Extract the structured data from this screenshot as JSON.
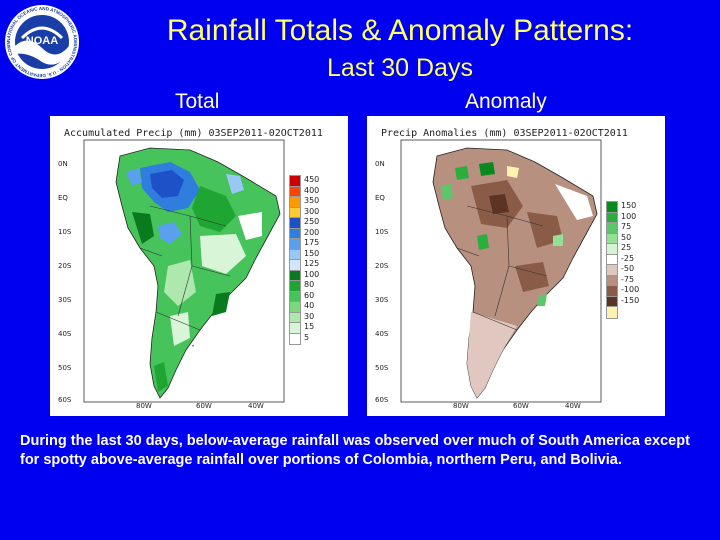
{
  "logo": {
    "icon": "noaa-logo",
    "center_text": "NOAA",
    "ring_text": "NATIONAL OCEANIC AND ATMOSPHERIC ADMINISTRATION · U.S. DEPARTMENT OF COMMERCE"
  },
  "slide": {
    "title": "Rainfall Totals & Anomaly Patterns:",
    "subtitle": "Last 30 Days"
  },
  "panels": {
    "total": {
      "label": "Total",
      "map_title": "Accumulated Precip (mm) 03SEP2011-02OCT2011",
      "lat_labels": [
        "0N",
        "EQ",
        "10S",
        "20S",
        "30S",
        "40S",
        "50S",
        "60S"
      ],
      "lon_labels": [
        "80W",
        "60W",
        "40W"
      ],
      "legend": [
        {
          "label": "450",
          "color": "#cc0000"
        },
        {
          "label": "400",
          "color": "#ff4400"
        },
        {
          "label": "350",
          "color": "#ff9900"
        },
        {
          "label": "300",
          "color": "#ffcc33"
        },
        {
          "label": "250",
          "color": "#1e50c8"
        },
        {
          "label": "200",
          "color": "#2f7ddc"
        },
        {
          "label": "175",
          "color": "#5aa0ee"
        },
        {
          "label": "150",
          "color": "#99c8f5"
        },
        {
          "label": "125",
          "color": "#cfe6fb"
        },
        {
          "label": "100",
          "color": "#0a7a1e"
        },
        {
          "label": "80",
          "color": "#1ea532"
        },
        {
          "label": "60",
          "color": "#46c35a"
        },
        {
          "label": "40",
          "color": "#7ad87e"
        },
        {
          "label": "30",
          "color": "#aee8ae"
        },
        {
          "label": "15",
          "color": "#d8f5d8"
        },
        {
          "label": "5",
          "color": "#ffffff"
        }
      ]
    },
    "anomaly": {
      "label": "Anomaly",
      "map_title": "Precip Anomalies (mm) 03SEP2011-02OCT2011",
      "lat_labels": [
        "0N",
        "EQ",
        "10S",
        "20S",
        "30S",
        "40S",
        "50S",
        "60S"
      ],
      "lon_labels": [
        "80W",
        "60W",
        "40W"
      ],
      "legend": [
        {
          "label": "150",
          "color": "#0a8a1e"
        },
        {
          "label": "100",
          "color": "#2aae3c"
        },
        {
          "label": "75",
          "color": "#5ac86a"
        },
        {
          "label": "50",
          "color": "#94e094"
        },
        {
          "label": "25",
          "color": "#d4f4d4"
        },
        {
          "label": "-25",
          "color": "#ffffff"
        },
        {
          "label": "-50",
          "color": "#e0c8c0"
        },
        {
          "label": "-75",
          "color": "#b89080"
        },
        {
          "label": "-100",
          "color": "#8a5c48"
        },
        {
          "label": "-150",
          "color": "#5c3424"
        },
        {
          "label": "",
          "color": "#fff2b0"
        }
      ]
    }
  },
  "caption": "During the last 30 days, below-average rainfall was observed over much of South America except for spotty above-average rainfall over portions of Colombia, northern Peru, and Bolivia."
}
